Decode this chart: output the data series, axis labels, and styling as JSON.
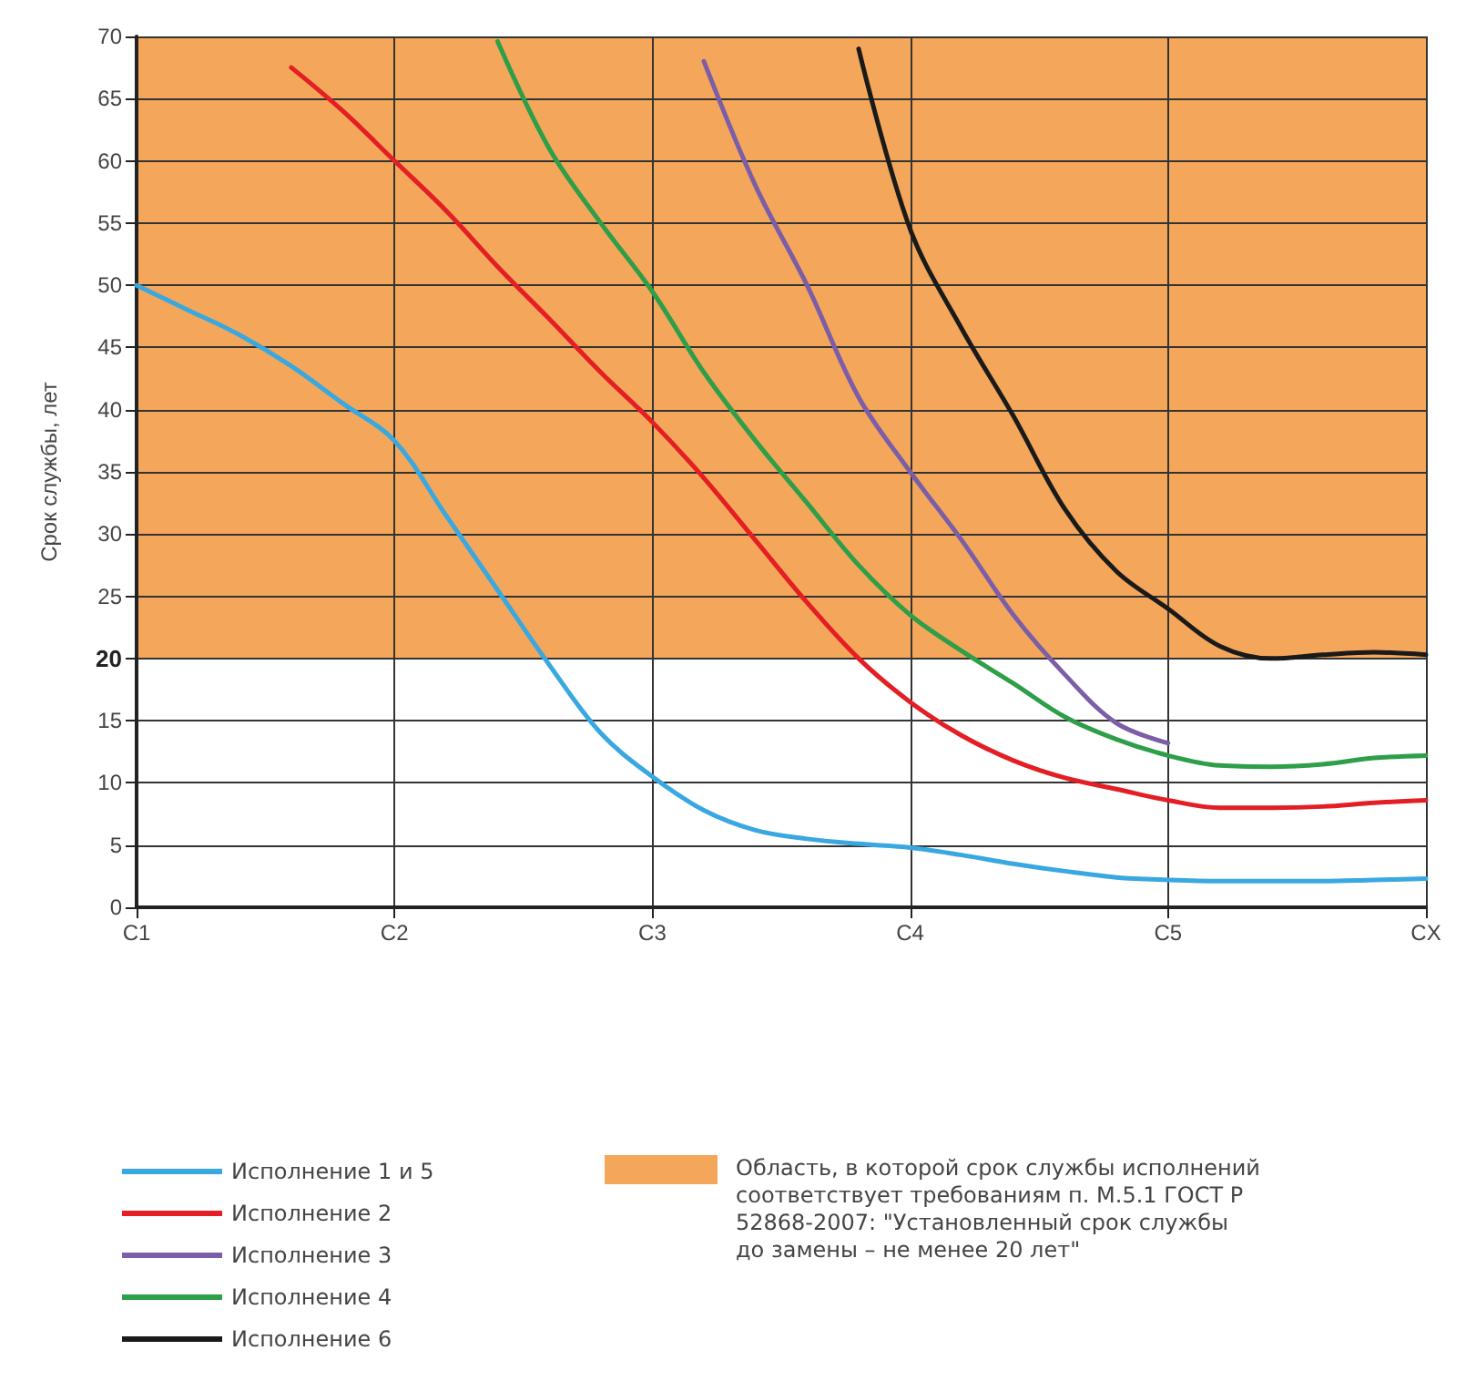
{
  "chart_data": {
    "type": "line",
    "ylabel": "Срок службы, лет",
    "ylim": [
      0,
      70
    ],
    "categories": [
      "C1",
      null,
      null,
      null,
      null,
      "C2",
      null,
      null,
      null,
      null,
      "C3",
      null,
      null,
      null,
      null,
      "C4",
      null,
      null,
      null,
      null,
      "C5",
      null,
      null,
      null,
      null,
      "CX"
    ],
    "yticks": [
      0,
      5,
      10,
      15,
      20,
      25,
      30,
      35,
      40,
      45,
      50,
      55,
      60,
      65,
      70
    ],
    "grid": true,
    "legend": "bottom",
    "marker": "none",
    "line_style": "solid",
    "bands": [
      {
        "axis": "y",
        "from": 20,
        "to": 70,
        "color": "#f4a75a"
      }
    ],
    "annotations": [
      "Область, в которой срок службы исполнений соответствует требованиям п. М.5.1 ГОСТ Р 52868-2007: \"Установленный срок службы до замены – не менее 20 лет\""
    ],
    "series": [
      {
        "name": "Исполнение 1 и 5",
        "color": "#3aa8e0",
        "values": [
          50,
          48,
          46,
          43.5,
          40.5,
          37.5,
          31.5,
          25.5,
          19.5,
          14,
          10.5,
          7.8,
          6.2,
          5.5,
          5.1,
          4.8,
          4.2,
          3.5,
          2.9,
          2.4,
          2.2,
          2.1,
          2.1,
          2.1,
          2.2,
          2.3
        ]
      },
      {
        "name": "Исполнение 2",
        "color": "#e31e24",
        "values": [
          null,
          null,
          null,
          67.5,
          64,
          60,
          56,
          51.5,
          47.3,
          43,
          39,
          34.5,
          29.5,
          24.5,
          20,
          16.5,
          13.8,
          11.8,
          10.4,
          9.5,
          8.6,
          8,
          8,
          8.1,
          8.4,
          8.6
        ]
      },
      {
        "name": "Исполнение 3",
        "color": "#7b5ea7",
        "values": [
          null,
          null,
          null,
          null,
          null,
          null,
          null,
          null,
          null,
          null,
          null,
          68,
          58,
          50,
          41,
          35,
          29.5,
          23.5,
          18.7,
          14.8,
          13.2,
          null,
          null,
          null,
          null,
          null
        ]
      },
      {
        "name": "Исполнение 4",
        "color": "#2e9e48",
        "values": [
          null,
          null,
          null,
          null,
          null,
          null,
          null,
          69.6,
          61,
          55,
          49.5,
          43,
          37.5,
          32.5,
          27.5,
          23.5,
          20.6,
          18,
          15.3,
          13.5,
          12.2,
          11.4,
          11.3,
          11.5,
          12,
          12.2
        ]
      },
      {
        "name": "Исполнение 6",
        "color": "#1a1a1a",
        "values": [
          null,
          null,
          null,
          null,
          null,
          null,
          null,
          null,
          null,
          null,
          null,
          null,
          null,
          null,
          69,
          54.5,
          46.5,
          39.5,
          32,
          27,
          24,
          21,
          20,
          20.3,
          20.5,
          20.3
        ]
      }
    ]
  }
}
